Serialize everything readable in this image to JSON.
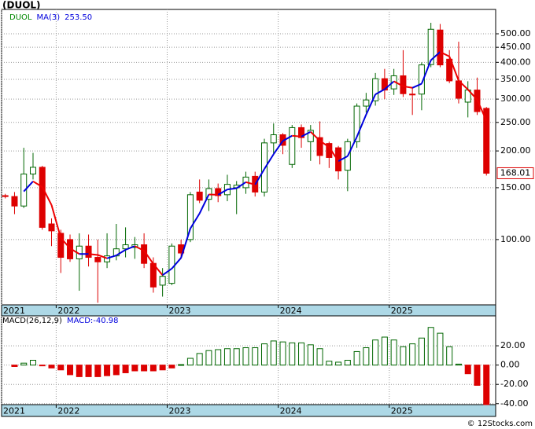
{
  "chart_data": [
    {
      "type": "candlestick",
      "title": "(DUOL)",
      "symbol": "DUOL",
      "symbol_color": "#008800",
      "open": [
        141,
        140,
        130,
        167,
        176,
        113,
        105,
        100,
        86,
        95,
        87,
        84,
        88,
        93,
        94,
        96,
        83,
        70,
        71,
        96,
        100,
        145,
        137,
        149,
        142,
        150,
        150,
        164,
        145,
        213,
        227,
        180,
        240,
        215,
        222,
        212,
        205,
        172,
        215,
        284,
        296,
        352,
        325,
        360,
        312,
        312,
        393,
        515,
        410,
        346,
        293,
        322,
        279
      ],
      "high": [
        143,
        145,
        205,
        197,
        178,
        118,
        108,
        104,
        105,
        104,
        100,
        105,
        113,
        110,
        102,
        105,
        87,
        80,
        97,
        100,
        145,
        160,
        160,
        155,
        166,
        158,
        170,
        170,
        220,
        248,
        230,
        245,
        246,
        245,
        252,
        215,
        208,
        220,
        290,
        315,
        368,
        380,
        380,
        440,
        330,
        400,
        545,
        540,
        440,
        470,
        345,
        355,
        282
      ],
      "low": [
        138,
        122,
        128,
        160,
        108,
        95,
        77,
        84,
        67,
        81,
        61,
        80,
        85,
        87,
        86,
        80,
        66,
        64,
        70,
        86,
        98,
        133,
        125,
        134,
        135,
        122,
        143,
        140,
        140,
        195,
        195,
        175,
        205,
        185,
        180,
        175,
        160,
        146,
        205,
        270,
        285,
        300,
        310,
        305,
        265,
        275,
        385,
        385,
        340,
        290,
        260,
        265,
        165
      ],
      "close": [
        140,
        130,
        167,
        176,
        110,
        107,
        87,
        86,
        95,
        87,
        84,
        88,
        93,
        96,
        96,
        83,
        69,
        75,
        95,
        90,
        142,
        136,
        149,
        141,
        154,
        153,
        163,
        145,
        213,
        227,
        209,
        240,
        222,
        235,
        193,
        190,
        171,
        215,
        284,
        298,
        352,
        322,
        360,
        313,
        310,
        392,
        518,
        392,
        346,
        302,
        322,
        272,
        168.01
      ],
      "last_value_label": "168.01",
      "up_color": "#006600",
      "down_color": "#dd0000",
      "ma": {
        "name": "MA(3)",
        "value_label": "253.50",
        "up_color": "#0000dd",
        "down_color": "#ee0000",
        "values": [
          null,
          null,
          145.67,
          157.67,
          151,
          131,
          101.33,
          93.33,
          89.33,
          89.33,
          88.67,
          86.33,
          88.33,
          92.33,
          95,
          91.67,
          82.67,
          75.67,
          79.67,
          86.67,
          109,
          122.67,
          142.33,
          142,
          148,
          149.33,
          156.67,
          153.67,
          173.67,
          195,
          216.33,
          225.33,
          223.67,
          232.33,
          216.67,
          206,
          184.67,
          192,
          223.33,
          265.67,
          311.33,
          324,
          344.67,
          331.67,
          327.67,
          338.33,
          406.67,
          434,
          418.67,
          346.67,
          323.33,
          298.67,
          253.5
        ]
      },
      "log_scale": true,
      "ylim": [
        60,
        605
      ],
      "yticks": [
        {
          "value": 100,
          "label": "100.00"
        },
        {
          "value": 150,
          "label": "150.00"
        },
        {
          "value": 200,
          "label": "200.00"
        },
        {
          "value": 250,
          "label": "250.00"
        },
        {
          "value": 300,
          "label": "300.00"
        },
        {
          "value": 350,
          "label": "350.00"
        },
        {
          "value": 400,
          "label": "400.00"
        },
        {
          "value": 450,
          "label": "450.00"
        },
        {
          "value": 500,
          "label": "500.00"
        }
      ],
      "xlim": [
        -0.4,
        53
      ],
      "xticks": [
        {
          "value": -0.4,
          "label": "2021"
        },
        {
          "value": 5.5,
          "label": "2022"
        },
        {
          "value": 17.5,
          "label": "2023"
        },
        {
          "value": 29.5,
          "label": "2024"
        },
        {
          "value": 41.5,
          "label": "2025"
        }
      ],
      "grid": true
    },
    {
      "type": "bar",
      "title": "MACD(26,12,9)",
      "value_label": "MACD:-40.98",
      "label_color": "#0000dd",
      "values": [
        null,
        -1.5,
        2,
        5,
        -0.5,
        -3,
        -5,
        -10,
        -12,
        -12,
        -12,
        -11,
        -10,
        -8,
        -6,
        -6,
        -6,
        -5,
        -3,
        0.5,
        7,
        12,
        15,
        16,
        17,
        17,
        18,
        18,
        22,
        25,
        24,
        23,
        23,
        21,
        17,
        4,
        3,
        5,
        14,
        18,
        26,
        29,
        26,
        19,
        22,
        28,
        39,
        33,
        19,
        1,
        -9,
        -21,
        -40.98
      ],
      "pos_color": "#006600",
      "neg_color": "#dd0000",
      "ylim": [
        -41,
        51
      ],
      "yticks": [
        {
          "value": 20,
          "label": "20.00"
        },
        {
          "value": 0,
          "label": "0.00"
        },
        {
          "value": -20,
          "label": "-20.00"
        },
        {
          "value": -40,
          "label": "-40.00"
        }
      ],
      "xlim": [
        -0.4,
        53
      ],
      "xticks": [
        {
          "value": -0.4,
          "label": "2021"
        },
        {
          "value": 5.5,
          "label": "2022"
        },
        {
          "value": 17.5,
          "label": "2023"
        },
        {
          "value": 29.5,
          "label": "2024"
        },
        {
          "value": 41.5,
          "label": "2025"
        }
      ],
      "grid": true
    }
  ],
  "footer": "© 12Stocks.com"
}
